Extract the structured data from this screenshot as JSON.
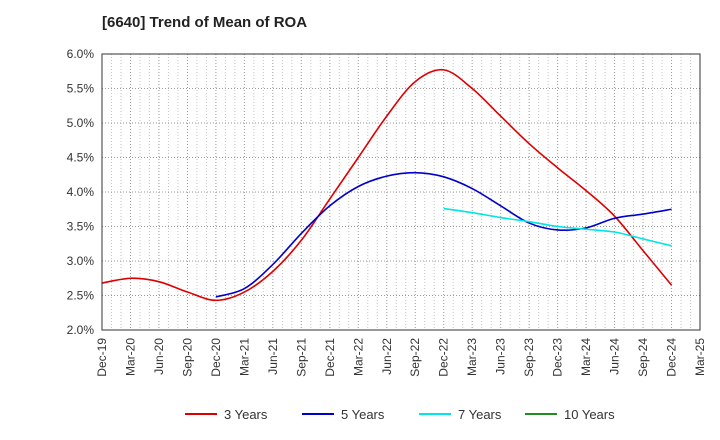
{
  "chart_data": {
    "type": "line",
    "title": "[6640]  Trend of Mean of ROA",
    "xlabel": "",
    "ylabel": "",
    "categories": [
      "Dec-19",
      "Mar-20",
      "Jun-20",
      "Sep-20",
      "Dec-20",
      "Mar-21",
      "Jun-21",
      "Sep-21",
      "Dec-21",
      "Mar-22",
      "Jun-22",
      "Sep-22",
      "Dec-22",
      "Mar-23",
      "Jun-23",
      "Sep-23",
      "Dec-23",
      "Mar-24",
      "Jun-24",
      "Sep-24",
      "Dec-24",
      "Mar-25"
    ],
    "ylim": [
      2.0,
      6.0
    ],
    "yticks": [
      2.0,
      2.5,
      3.0,
      3.5,
      4.0,
      4.5,
      5.0,
      5.5,
      6.0
    ],
    "ytick_labels": [
      "2.0%",
      "2.5%",
      "3.0%",
      "3.5%",
      "4.0%",
      "4.5%",
      "5.0%",
      "5.5%",
      "6.0%"
    ],
    "grid": true,
    "legend_position": "bottom",
    "series": [
      {
        "name": "3 Years",
        "color": "#dd0000",
        "values": [
          2.68,
          2.75,
          2.7,
          2.55,
          2.43,
          2.55,
          2.85,
          3.3,
          3.9,
          4.5,
          5.1,
          5.6,
          5.77,
          5.5,
          5.1,
          4.7,
          4.35,
          4.02,
          3.65,
          3.15,
          2.65,
          null
        ]
      },
      {
        "name": "5 Years",
        "color": "#0000cc",
        "values": [
          null,
          null,
          null,
          null,
          2.48,
          2.6,
          2.95,
          3.4,
          3.8,
          4.08,
          4.23,
          4.28,
          4.22,
          4.05,
          3.8,
          3.55,
          3.45,
          3.48,
          3.62,
          3.68,
          3.75,
          null
        ]
      },
      {
        "name": "7 Years",
        "color": "#00e5e5",
        "values": [
          null,
          null,
          null,
          null,
          null,
          null,
          null,
          null,
          null,
          null,
          null,
          null,
          3.76,
          3.7,
          3.63,
          3.57,
          3.5,
          3.46,
          3.42,
          3.32,
          3.22,
          null
        ]
      },
      {
        "name": "10 Years",
        "color": "#228b22",
        "values": [
          null,
          null,
          null,
          null,
          null,
          null,
          null,
          null,
          null,
          null,
          null,
          null,
          null,
          null,
          null,
          null,
          null,
          null,
          null,
          null,
          null,
          null
        ]
      }
    ]
  }
}
